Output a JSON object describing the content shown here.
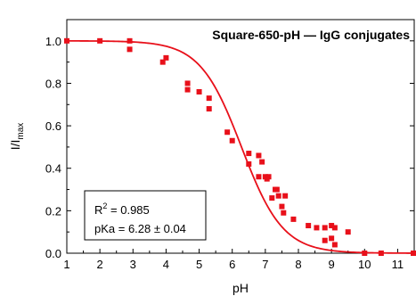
{
  "chart_data": {
    "type": "scatter",
    "title": "Square-650-pH — IgG conjugates",
    "xlabel": "pH",
    "ylabel": {
      "base": "I/I",
      "sub": "max"
    },
    "xlim": [
      1,
      11.5
    ],
    "ylim": [
      0,
      1.1
    ],
    "xticks": [
      1,
      2,
      3,
      4,
      5,
      6,
      7,
      8,
      9,
      10,
      11
    ],
    "yticks": [
      0.0,
      0.2,
      0.4,
      0.6,
      0.8,
      1.0
    ],
    "ytick_labels": [
      "0.0",
      "0.2",
      "0.4",
      "0.6",
      "0.8",
      "1.0"
    ],
    "grid": false,
    "marker_color": "#e8101a",
    "fit_color": "#e8101a",
    "fit": {
      "model": "sigmoid",
      "top": 1.0,
      "bottom": 0.0,
      "pKa": 6.28,
      "slope": 1.6
    },
    "stats": {
      "r2_base": "R",
      "r2_sup": "2",
      "r2_rest": " = 0.985",
      "pka_text": "pKa = 6.28 ± 0.04"
    },
    "points": [
      [
        1.0,
        1.0
      ],
      [
        2.0,
        1.0
      ],
      [
        2.9,
        1.0
      ],
      [
        2.9,
        0.96
      ],
      [
        3.9,
        0.9
      ],
      [
        4.0,
        0.92
      ],
      [
        4.65,
        0.8
      ],
      [
        4.65,
        0.77
      ],
      [
        5.0,
        0.76
      ],
      [
        5.3,
        0.73
      ],
      [
        5.3,
        0.68
      ],
      [
        5.85,
        0.57
      ],
      [
        6.0,
        0.53
      ],
      [
        6.5,
        0.47
      ],
      [
        6.5,
        0.42
      ],
      [
        6.8,
        0.46
      ],
      [
        6.8,
        0.36
      ],
      [
        6.9,
        0.43
      ],
      [
        7.0,
        0.36
      ],
      [
        7.05,
        0.35
      ],
      [
        7.1,
        0.36
      ],
      [
        7.2,
        0.26
      ],
      [
        7.3,
        0.3
      ],
      [
        7.35,
        0.3
      ],
      [
        7.4,
        0.27
      ],
      [
        7.5,
        0.22
      ],
      [
        7.55,
        0.19
      ],
      [
        7.6,
        0.27
      ],
      [
        7.85,
        0.16
      ],
      [
        8.3,
        0.13
      ],
      [
        8.55,
        0.12
      ],
      [
        8.8,
        0.12
      ],
      [
        8.8,
        0.06
      ],
      [
        9.0,
        0.13
      ],
      [
        9.0,
        0.07
      ],
      [
        9.1,
        0.12
      ],
      [
        9.1,
        0.04
      ],
      [
        9.5,
        0.1
      ],
      [
        10.0,
        0.0
      ],
      [
        10.5,
        0.0
      ],
      [
        11.5,
        0.0
      ]
    ]
  }
}
